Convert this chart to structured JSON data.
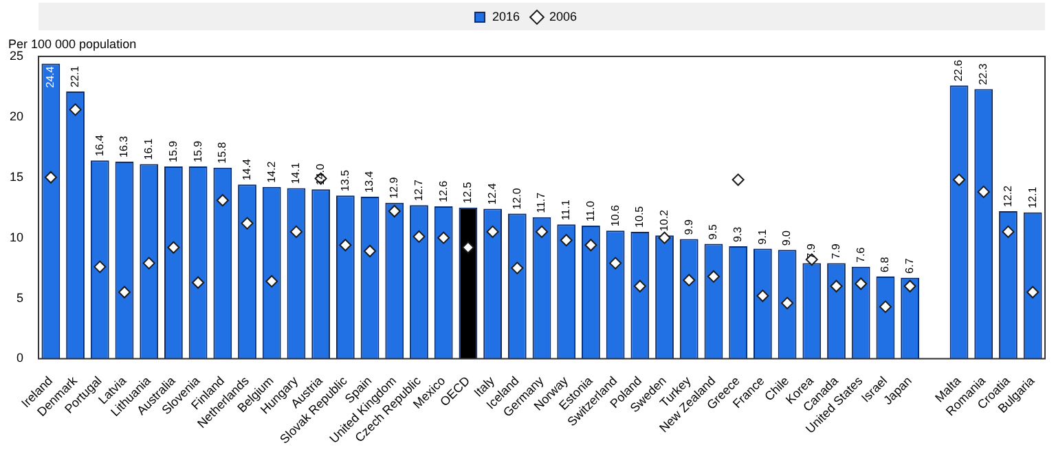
{
  "chart_data": {
    "type": "bar",
    "ylabel": "Per 100 000 population",
    "categories": [
      "Ireland",
      "Denmark",
      "Portugal",
      "Latvia",
      "Lithuania",
      "Australia",
      "Slovenia",
      "Finland",
      "Netherlands",
      "Belgium",
      "Hungary",
      "Austria",
      "Slovak Republic",
      "Spain",
      "United Kingdom",
      "Czech Republic",
      "Mexico",
      "OECD",
      "Italy",
      "Iceland",
      "Germany",
      "Norway",
      "Estonia",
      "Switzerland",
      "Poland",
      "Sweden",
      "Turkey",
      "New Zealand",
      "Greece",
      "France",
      "Chile",
      "Korea",
      "Canada",
      "United States",
      "Israel",
      "Japan",
      null,
      "Malta",
      "Romania",
      "Croatia",
      "Bulgaria"
    ],
    "series": [
      {
        "name": "2016",
        "colors": [
          "#2170e4",
          "#2170e4",
          "#2170e4",
          "#2170e4",
          "#2170e4",
          "#2170e4",
          "#2170e4",
          "#2170e4",
          "#2170e4",
          "#2170e4",
          "#2170e4",
          "#2170e4",
          "#2170e4",
          "#2170e4",
          "#2170e4",
          "#2170e4",
          "#2170e4",
          "#000000",
          "#2170e4",
          "#2170e4",
          "#2170e4",
          "#2170e4",
          "#2170e4",
          "#2170e4",
          "#2170e4",
          "#2170e4",
          "#2170e4",
          "#2170e4",
          "#2170e4",
          "#2170e4",
          "#2170e4",
          "#2170e4",
          "#2170e4",
          "#2170e4",
          "#2170e4",
          "#2170e4",
          "#2170e4",
          "#2170e4",
          "#2170e4",
          "#2170e4",
          "#2170e4"
        ],
        "values": [
          24.4,
          22.1,
          16.4,
          16.3,
          16.1,
          15.9,
          15.9,
          15.8,
          14.4,
          14.2,
          14.1,
          14.0,
          13.5,
          13.4,
          12.9,
          12.7,
          12.6,
          12.5,
          12.4,
          12.0,
          11.7,
          11.1,
          11.0,
          10.6,
          10.5,
          10.2,
          9.9,
          9.5,
          9.3,
          9.1,
          9.0,
          7.9,
          7.9,
          7.6,
          6.8,
          6.7,
          null,
          22.6,
          22.3,
          12.2,
          12.1
        ],
        "value_labels": [
          "24.4",
          "22.1",
          "16.4",
          "16.3",
          "16.1",
          "15.9",
          "15.9",
          "15.8",
          "14.4",
          "14.2",
          "14.1",
          "14.0",
          "13.5",
          "13.4",
          "12.9",
          "12.7",
          "12.6",
          "12.5",
          "12.4",
          "12.0",
          "11.7",
          "11.1",
          "11.0",
          "10.6",
          "10.5",
          "10.2",
          "9.9",
          "9.5",
          "9.3",
          "9.1",
          "9.0",
          "7.9",
          "7.9",
          "7.6",
          "6.8",
          "6.7",
          null,
          "22.6",
          "22.3",
          "12.2",
          "12.1"
        ]
      },
      {
        "name": "2006",
        "type": "scatter",
        "color": "#ffffff",
        "marker": "diamond",
        "values": [
          15.0,
          20.6,
          7.6,
          5.5,
          7.9,
          9.2,
          6.3,
          13.1,
          11.2,
          6.4,
          10.5,
          14.9,
          9.4,
          8.9,
          12.2,
          10.1,
          10.0,
          9.2,
          10.5,
          7.5,
          10.5,
          9.8,
          9.4,
          7.9,
          6.0,
          10.0,
          6.5,
          6.8,
          14.8,
          5.2,
          4.6,
          8.2,
          6.0,
          6.2,
          4.3,
          6.0,
          null,
          14.8,
          13.8,
          10.5,
          5.5
        ]
      }
    ],
    "ylim": [
      0,
      25
    ],
    "yticks": [
      0,
      5,
      10,
      15,
      20,
      25
    ],
    "grid": false,
    "legend": "top"
  }
}
